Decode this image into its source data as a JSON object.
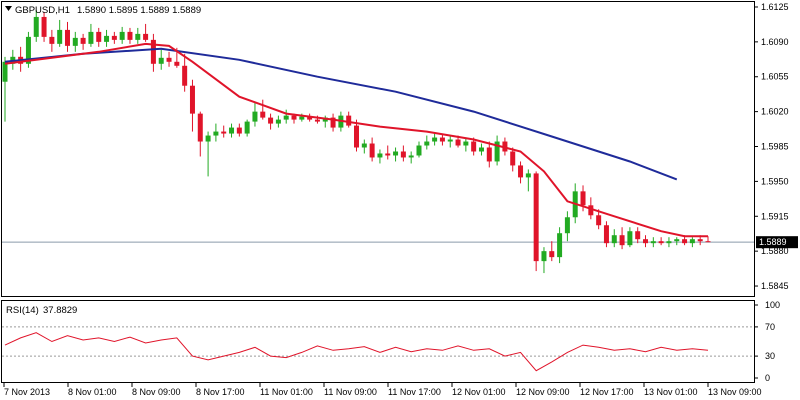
{
  "header": {
    "symbol": "GBPUSD,H1",
    "ohlc": "1.5890 1.5895 1.5889 1.5889",
    "current_price_label": "1.5889"
  },
  "rsi_header": {
    "label": "RSI(14)",
    "value": "37.8829"
  },
  "colors": {
    "bull": "#22aa22",
    "bear": "#e0142a",
    "ma_fast": "#e0142a",
    "ma_slow": "#1f2b9a",
    "rsi_line": "#e0142a",
    "grid_border": "#000000"
  },
  "chart_data": [
    {
      "type": "candlestick",
      "title": "GBPUSD,H1",
      "ylim": [
        1.5835,
        1.613
      ],
      "y_ticks": [
        "1.6125",
        "1.6090",
        "1.6055",
        "1.6020",
        "1.5985",
        "1.5950",
        "1.5915",
        "1.5880",
        "1.5845"
      ],
      "x_ticks": [
        "7 Nov 2013",
        "8 Nov 01:00",
        "8 Nov 09:00",
        "8 Nov 17:00",
        "11 Nov 01:00",
        "11 Nov 09:00",
        "11 Nov 17:00",
        "12 Nov 01:00",
        "12 Nov 09:00",
        "12 Nov 17:00",
        "13 Nov 01:00",
        "13 Nov 09:00"
      ],
      "last_price": 1.5889,
      "ohlc": [
        [
          1.605,
          1.6075,
          1.601,
          1.607
        ],
        [
          1.6068,
          1.6082,
          1.6062,
          1.6075
        ],
        [
          1.6075,
          1.6085,
          1.606,
          1.6068
        ],
        [
          1.6068,
          1.61,
          1.6064,
          1.6095
        ],
        [
          1.6095,
          1.6122,
          1.609,
          1.6115
        ],
        [
          1.6115,
          1.612,
          1.609,
          1.6095
        ],
        [
          1.6095,
          1.6102,
          1.608,
          1.6088
        ],
        [
          1.6088,
          1.6112,
          1.6085,
          1.6102
        ],
        [
          1.6102,
          1.611,
          1.608,
          1.6086
        ],
        [
          1.6086,
          1.61,
          1.608,
          1.6094
        ],
        [
          1.6094,
          1.6098,
          1.6082,
          1.6088
        ],
        [
          1.6088,
          1.6108,
          1.6085,
          1.61
        ],
        [
          1.61,
          1.6104,
          1.6085,
          1.609
        ],
        [
          1.609,
          1.6102,
          1.6085,
          1.6096
        ],
        [
          1.6096,
          1.61,
          1.6088,
          1.6092
        ],
        [
          1.6092,
          1.6105,
          1.6088,
          1.61
        ],
        [
          1.61,
          1.6104,
          1.6088,
          1.6092
        ],
        [
          1.6092,
          1.6104,
          1.6088,
          1.6098
        ],
        [
          1.6098,
          1.6108,
          1.609,
          1.6092
        ],
        [
          1.6092,
          1.6098,
          1.606,
          1.6068
        ],
        [
          1.6068,
          1.6082,
          1.6062,
          1.6074
        ],
        [
          1.6074,
          1.608,
          1.6065,
          1.607
        ],
        [
          1.607,
          1.6084,
          1.6064,
          1.6066
        ],
        [
          1.6066,
          1.6078,
          1.604,
          1.6046
        ],
        [
          1.6046,
          1.6052,
          1.6,
          1.6018
        ],
        [
          1.6018,
          1.602,
          1.5975,
          1.599
        ],
        [
          1.599,
          1.6,
          1.5955,
          1.5996
        ],
        [
          1.5996,
          1.6008,
          1.599,
          1.6
        ],
        [
          1.6,
          1.6006,
          1.5994,
          1.5998
        ],
        [
          1.5998,
          1.6008,
          1.5994,
          1.6004
        ],
        [
          1.6004,
          1.6008,
          1.5995,
          1.5998
        ],
        [
          1.5998,
          1.6012,
          1.5995,
          1.601
        ],
        [
          1.601,
          1.603,
          1.6005,
          1.602
        ],
        [
          1.602,
          1.6032,
          1.6012,
          1.6014
        ],
        [
          1.6014,
          1.6018,
          1.6002,
          1.6008
        ],
        [
          1.6008,
          1.6016,
          1.6004,
          1.6012
        ],
        [
          1.6012,
          1.6022,
          1.6008,
          1.6016
        ],
        [
          1.6016,
          1.6018,
          1.6008,
          1.6012
        ],
        [
          1.6012,
          1.6018,
          1.601,
          1.6015
        ],
        [
          1.6015,
          1.6018,
          1.601,
          1.6012
        ],
        [
          1.6012,
          1.6016,
          1.6008,
          1.601
        ],
        [
          1.601,
          1.6016,
          1.6004,
          1.6014
        ],
        [
          1.6014,
          1.6018,
          1.6,
          1.6004
        ],
        [
          1.6004,
          1.602,
          1.6,
          1.6016
        ],
        [
          1.6016,
          1.602,
          1.6004,
          1.6006
        ],
        [
          1.6006,
          1.6012,
          1.598,
          1.5984
        ],
        [
          1.5984,
          1.5992,
          1.5978,
          1.5988
        ],
        [
          1.5988,
          1.5994,
          1.597,
          1.5974
        ],
        [
          1.5974,
          1.5982,
          1.5968,
          1.5978
        ],
        [
          1.5978,
          1.5986,
          1.5972,
          1.5976
        ],
        [
          1.5976,
          1.5984,
          1.597,
          1.598
        ],
        [
          1.598,
          1.5986,
          1.597,
          1.5974
        ],
        [
          1.5974,
          1.598,
          1.5968,
          1.5976
        ],
        [
          1.5976,
          1.599,
          1.5974,
          1.5986
        ],
        [
          1.5986,
          1.5996,
          1.5982,
          1.599
        ],
        [
          1.599,
          1.5998,
          1.5986,
          1.5994
        ],
        [
          1.5994,
          1.5998,
          1.5986,
          1.599
        ],
        [
          1.599,
          1.5996,
          1.5984,
          1.5992
        ],
        [
          1.5992,
          1.5996,
          1.5984,
          1.5986
        ],
        [
          1.5986,
          1.5994,
          1.598,
          1.599
        ],
        [
          1.599,
          1.5994,
          1.5976,
          1.598
        ],
        [
          1.598,
          1.5988,
          1.5976,
          1.5984
        ],
        [
          1.5984,
          1.599,
          1.5964,
          1.597
        ],
        [
          1.597,
          1.5996,
          1.5966,
          1.599
        ],
        [
          1.599,
          1.5994,
          1.5976,
          1.598
        ],
        [
          1.598,
          1.5984,
          1.596,
          1.5966
        ],
        [
          1.5966,
          1.597,
          1.5948,
          1.5954
        ],
        [
          1.5954,
          1.5962,
          1.594,
          1.5958
        ],
        [
          1.5958,
          1.596,
          1.586,
          1.587
        ],
        [
          1.587,
          1.5884,
          1.5858,
          1.588
        ],
        [
          1.588,
          1.589,
          1.587,
          1.5874
        ],
        [
          1.5874,
          1.5904,
          1.5868,
          1.5898
        ],
        [
          1.5898,
          1.592,
          1.589,
          1.5914
        ],
        [
          1.5914,
          1.5948,
          1.5908,
          1.594
        ],
        [
          1.594,
          1.5946,
          1.592,
          1.5926
        ],
        [
          1.5926,
          1.5934,
          1.5912,
          1.5916
        ],
        [
          1.5916,
          1.5922,
          1.5902,
          1.5906
        ],
        [
          1.5906,
          1.591,
          1.5884,
          1.5888
        ],
        [
          1.5888,
          1.5902,
          1.5884,
          1.5896
        ],
        [
          1.5896,
          1.5904,
          1.5882,
          1.5886
        ],
        [
          1.5886,
          1.5904,
          1.5884,
          1.59
        ],
        [
          1.59,
          1.5904,
          1.5888,
          1.5892
        ],
        [
          1.5892,
          1.5896,
          1.5884,
          1.5888
        ],
        [
          1.5888,
          1.5894,
          1.5884,
          1.589
        ],
        [
          1.589,
          1.5894,
          1.5886,
          1.5888
        ],
        [
          1.5888,
          1.5894,
          1.5884,
          1.589
        ],
        [
          1.589,
          1.5894,
          1.5886,
          1.5892
        ],
        [
          1.5892,
          1.5896,
          1.5886,
          1.5888
        ],
        [
          1.5888,
          1.5894,
          1.5884,
          1.5892
        ],
        [
          1.5892,
          1.5896,
          1.5886,
          1.589
        ],
        [
          1.589,
          1.5895,
          1.5889,
          1.5889
        ]
      ],
      "series": [
        {
          "type": "line",
          "x": [
            0,
            6,
            12,
            18,
            21,
            24,
            30,
            36,
            42,
            48,
            54,
            60,
            66,
            69,
            72,
            78,
            84,
            87,
            90
          ],
          "values": [
            1.6068,
            1.6074,
            1.608,
            1.6088,
            1.6086,
            1.607,
            1.6035,
            1.6018,
            1.6012,
            1.6005,
            1.6,
            1.5992,
            1.598,
            1.596,
            1.593,
            1.5915,
            1.59,
            1.5895,
            1.5895
          ]
        },
        {
          "type": "line",
          "x": [
            0,
            10,
            20,
            30,
            40,
            50,
            60,
            70,
            80,
            86
          ],
          "values": [
            1.607,
            1.6078,
            1.6083,
            1.6072,
            1.6055,
            1.604,
            1.602,
            1.5995,
            1.597,
            1.5952
          ]
        }
      ]
    },
    {
      "type": "line",
      "title": "RSI(14) 37.8829",
      "ylim": [
        0,
        100
      ],
      "y_ticks": [
        "100",
        "70",
        "30",
        "0"
      ],
      "levels": [
        70,
        30
      ],
      "x": [
        0,
        2,
        4,
        6,
        8,
        10,
        12,
        14,
        16,
        18,
        20,
        22,
        24,
        26,
        28,
        30,
        32,
        34,
        36,
        38,
        40,
        42,
        44,
        46,
        48,
        50,
        52,
        54,
        56,
        58,
        60,
        62,
        64,
        66,
        68,
        70,
        72,
        74,
        76,
        78,
        80,
        82,
        84,
        86,
        88,
        90
      ],
      "values": [
        45,
        55,
        62,
        50,
        58,
        52,
        55,
        50,
        56,
        48,
        52,
        55,
        30,
        25,
        30,
        35,
        42,
        30,
        28,
        35,
        44,
        38,
        40,
        43,
        35,
        42,
        36,
        40,
        38,
        44,
        38,
        40,
        30,
        35,
        10,
        22,
        35,
        45,
        42,
        38,
        40,
        36,
        42,
        38,
        40,
        37.88
      ]
    }
  ]
}
